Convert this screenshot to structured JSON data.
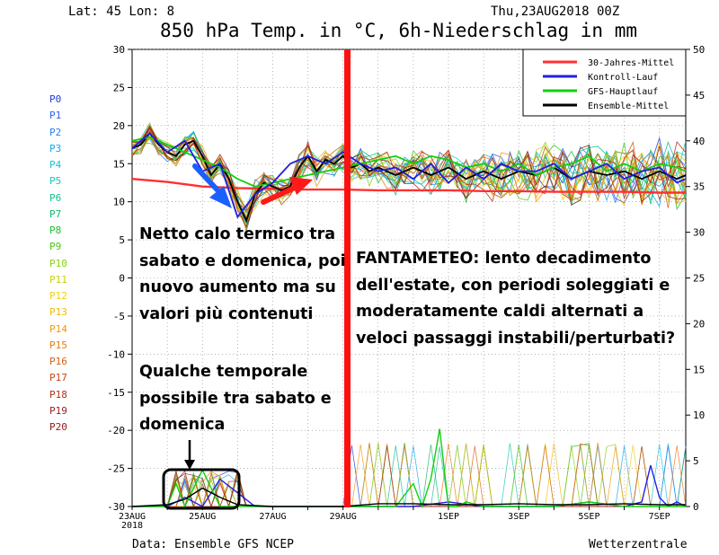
{
  "header": {
    "location": "Lat: 45 Lon: 8",
    "run": "Thu,23AUG2018 00Z",
    "title": "850 hPa Temp. in °C, 6h-Niederschlag in mm"
  },
  "ensemble_members": [
    "P0",
    "P1",
    "P2",
    "P3",
    "P4",
    "P5",
    "P6",
    "P7",
    "P8",
    "P9",
    "P10",
    "P11",
    "P12",
    "P13",
    "P14",
    "P15",
    "P16",
    "P17",
    "P18",
    "P19",
    "P20"
  ],
  "member_colors": [
    "#1f3fd6",
    "#2a5ff0",
    "#2a7ff0",
    "#14a6e8",
    "#10c0d8",
    "#10ccb8",
    "#10c090",
    "#10b868",
    "#18c030",
    "#48c818",
    "#88d010",
    "#c8d010",
    "#f0d010",
    "#f0b810",
    "#f09810",
    "#e87810",
    "#d86010",
    "#c84810",
    "#b03018",
    "#a02020",
    "#901818"
  ],
  "legend": {
    "items": [
      {
        "label": "30-Jahres-Mittel",
        "color": "#ff3030"
      },
      {
        "label": "Kontroll-Lauf",
        "color": "#2020e0"
      },
      {
        "label": "GFS-Hauptlauf",
        "color": "#10d010"
      },
      {
        "label": "Ensemble-Mittel",
        "color": "#000000"
      }
    ]
  },
  "annotations": {
    "left_top": [
      "Netto calo termico tra",
      "sabato e domenica, poi",
      "nuovo aumento ma su",
      "valori più contenuti"
    ],
    "left_bottom": [
      "Qualche temporale",
      "possibile tra sabato e",
      "domenica"
    ],
    "right": [
      "FANTAMETEO: lento decadimento",
      "dell'estate, con periodi soleggiati e",
      "moderatamente caldi alternati a",
      "veloci passaggi instabili/perturbati?"
    ]
  },
  "footer": {
    "source": "Data: Ensemble GFS NCEP",
    "brand": "Wetterzentrale"
  },
  "chart_data": {
    "type": "line",
    "title": "850 hPa Temp. in °C, 6h-Niederschlag in mm",
    "x_unit": "days since 23AUG2018 00Z",
    "xlim": [
      0,
      15.75
    ],
    "ylim_left": [
      -30,
      30
    ],
    "ylim_right": [
      0,
      50
    ],
    "left_ticks": [
      30,
      25,
      20,
      15,
      10,
      5,
      0,
      -5,
      -10,
      -15,
      -20,
      -25,
      -30
    ],
    "right_ticks": [
      50,
      45,
      40,
      35,
      30,
      25,
      20,
      15,
      10,
      5,
      0
    ],
    "x_tick_labels": [
      {
        "day": 0,
        "label": "23AUG",
        "label2": "2018"
      },
      {
        "day": 2,
        "label": "25AUG"
      },
      {
        "day": 4,
        "label": "27AUG"
      },
      {
        "day": 6,
        "label": "29AUG"
      },
      {
        "day": 9,
        "label": "1SEP"
      },
      {
        "day": 11,
        "label": "3SEP"
      },
      {
        "day": 13,
        "label": "5SEP"
      },
      {
        "day": 15,
        "label": "7SEP"
      }
    ],
    "grid": true,
    "legend_position": "top-right",
    "series": [
      {
        "name": "30-Jahres-Mittel",
        "axis": "left",
        "color": "#ff3030",
        "x": [
          0,
          1,
          2,
          3,
          4,
          5,
          6,
          7,
          8,
          9,
          10,
          11,
          12,
          13,
          14,
          15,
          15.75
        ],
        "y": [
          13,
          12.6,
          12,
          11.8,
          11.7,
          11.6,
          11.6,
          11.5,
          11.5,
          11.5,
          11.4,
          11.4,
          11.3,
          11.3,
          11.3,
          11.2,
          11.2
        ]
      },
      {
        "name": "Ensemble-Mittel",
        "axis": "left",
        "color": "#000000",
        "x": [
          0,
          0.25,
          0.5,
          0.75,
          1,
          1.25,
          1.5,
          1.75,
          2,
          2.25,
          2.5,
          2.75,
          3,
          3.25,
          3.5,
          3.75,
          4,
          4.25,
          4.5,
          4.75,
          5,
          5.25,
          5.5,
          5.75,
          6,
          6.25,
          6.5,
          6.75,
          7,
          7.5,
          8,
          8.5,
          9,
          9.5,
          10,
          10.5,
          11,
          11.5,
          12,
          12.5,
          13,
          13.5,
          14,
          14.5,
          15,
          15.5,
          15.75
        ],
        "y": [
          17,
          17.5,
          19,
          17.5,
          16.5,
          16,
          17.5,
          18,
          16,
          13.5,
          15,
          13,
          10,
          7.5,
          11,
          12.5,
          12,
          11.5,
          12,
          14.5,
          16,
          14,
          15.5,
          15,
          16,
          14.5,
          15,
          14,
          14.5,
          13.5,
          14.5,
          13.5,
          14.5,
          13,
          14,
          13,
          14,
          13.5,
          14.5,
          13,
          14,
          13.5,
          14,
          13,
          14,
          13,
          13.5
        ]
      },
      {
        "name": "GFS-Hauptlauf",
        "axis": "left",
        "color": "#10d010",
        "x": [
          0,
          0.5,
          1,
          1.5,
          2,
          2.5,
          3,
          3.5,
          4,
          4.5,
          5,
          5.5,
          6,
          6.5,
          7,
          7.5,
          8,
          8.5,
          9,
          9.5,
          10,
          10.5,
          11,
          11.5,
          12,
          12.5,
          13,
          13.5,
          14,
          14.5,
          15,
          15.5,
          15.75
        ],
        "y": [
          18,
          18.5,
          17.5,
          16.5,
          15.5,
          14.5,
          13,
          12,
          12.5,
          13,
          13.5,
          14,
          14.5,
          15,
          15.5,
          16,
          15,
          16,
          15.5,
          14.5,
          15,
          14,
          15,
          13.5,
          14.5,
          15,
          16,
          14,
          15,
          14,
          15,
          14.5,
          14
        ]
      },
      {
        "name": "Kontroll-Lauf",
        "axis": "left",
        "color": "#2020e0",
        "x": [
          0,
          0.5,
          1,
          1.5,
          2,
          2.5,
          3,
          3.5,
          4,
          4.5,
          5,
          5.5,
          6,
          6.5,
          7,
          7.5,
          8,
          8.5,
          9,
          9.5,
          10,
          10.5,
          11,
          11.5,
          12,
          12.5,
          13,
          13.5,
          14,
          14.5,
          15,
          15.5,
          15.75
        ],
        "y": [
          17,
          19,
          16.5,
          18,
          14,
          15,
          8,
          11,
          12.5,
          15,
          16,
          15,
          16.5,
          15,
          14,
          14.5,
          13,
          15,
          12.5,
          14.5,
          13,
          15,
          14,
          14,
          15,
          13,
          14,
          15,
          13,
          14,
          14.5,
          12.5,
          13
        ]
      },
      {
        "name": "Kontroll-Lauf-Niederschlag",
        "axis": "right",
        "color": "#2020e0",
        "x": [
          0,
          1,
          1.5,
          2,
          2.5,
          3,
          3.5,
          4,
          6,
          7,
          8,
          9,
          10,
          11,
          12,
          13,
          14,
          14.5,
          14.75,
          15,
          15.25,
          15.5,
          15.75
        ],
        "y": [
          0,
          0,
          1,
          0,
          3,
          1.5,
          0,
          0,
          0,
          0,
          0,
          0.5,
          0,
          0,
          0,
          0.5,
          0,
          0.5,
          4.5,
          1,
          0,
          0.5,
          0
        ]
      },
      {
        "name": "GFS-Hauptlauf-Niederschlag",
        "axis": "right",
        "color": "#10d010",
        "x": [
          0,
          1,
          1.25,
          1.5,
          2,
          2.25,
          2.5,
          3,
          4,
          5,
          6,
          6.5,
          7,
          7.5,
          8,
          8.25,
          8.5,
          8.75,
          9,
          9.25,
          9.5,
          10,
          11,
          12,
          13,
          14,
          15,
          15.75
        ],
        "y": [
          0,
          0,
          2.5,
          0,
          4,
          2,
          0,
          0,
          0,
          0,
          0,
          0,
          0,
          0,
          2.5,
          0,
          3,
          8.5,
          0,
          0,
          0.5,
          0,
          0,
          0,
          0.5,
          0,
          0,
          0
        ]
      },
      {
        "name": "Ensemble-Mittel-Niederschlag",
        "axis": "right",
        "color": "#000000",
        "x": [
          0,
          1,
          1.5,
          2,
          2.5,
          3,
          4,
          6,
          7,
          8,
          9,
          10,
          11,
          12,
          13,
          14,
          15,
          15.75
        ],
        "y": [
          0,
          0.2,
          0.8,
          2,
          1,
          0.2,
          0,
          0,
          0.3,
          0.3,
          0.2,
          0.2,
          0.3,
          0.2,
          0.2,
          0.3,
          0.2,
          0.2
        ]
      }
    ]
  }
}
